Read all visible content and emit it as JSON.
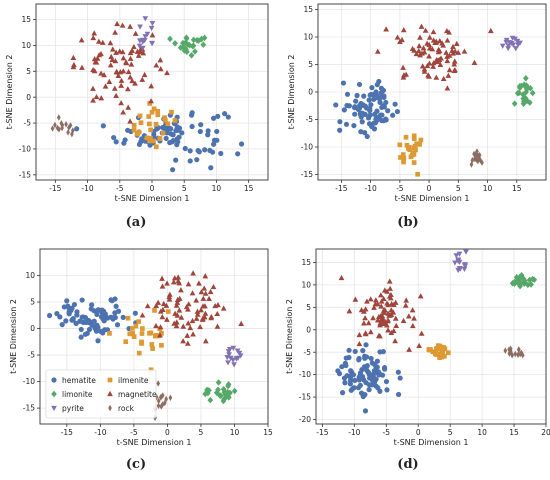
{
  "figure": {
    "captions": [
      "(a)",
      "(b)",
      "(c)",
      "(d)"
    ]
  },
  "legend": {
    "entries": [
      {
        "label": "hematite",
        "marker": "circle",
        "color": "#4c72b0"
      },
      {
        "label": "ilmenite",
        "marker": "square",
        "color": "#dd9933"
      },
      {
        "label": "limonite",
        "marker": "diamond",
        "color": "#55a868"
      },
      {
        "label": "magnetite",
        "marker": "triangle-up",
        "color": "#a0453b"
      },
      {
        "label": "pyrite",
        "marker": "triangle-down",
        "color": "#8172b3"
      },
      {
        "label": "rock",
        "marker": "thin-diamond",
        "color": "#8c6d62"
      }
    ]
  },
  "chart_data": [
    {
      "type": "scatter",
      "caption": "(a)",
      "xlabel": "t-SNE Dimension 1",
      "ylabel": "t-SNE Dimension 2",
      "xlim": [
        -18,
        18
      ],
      "ylim": [
        -16,
        18
      ],
      "xticks": [
        -15,
        -10,
        -5,
        0,
        5,
        10,
        15
      ],
      "yticks": [
        -15,
        -10,
        -5,
        0,
        5,
        10,
        15
      ],
      "grid": true,
      "legend": false,
      "clusters": [
        {
          "class": "hematite",
          "cx": 3,
          "cy": -7,
          "sx": 6,
          "sy": 3.5,
          "n": 90
        },
        {
          "class": "ilmenite",
          "cx": 0,
          "cy": -5,
          "sx": 2.5,
          "sy": 3.5,
          "n": 28
        },
        {
          "class": "magnetite",
          "cx": -5,
          "cy": 6,
          "sx": 5,
          "sy": 5,
          "n": 80
        },
        {
          "class": "limonite",
          "cx": 6,
          "cy": 10,
          "sx": 2.5,
          "sy": 1.2,
          "n": 24
        },
        {
          "class": "pyrite",
          "cx": -1,
          "cy": 12,
          "sx": 1.2,
          "sy": 2.2,
          "n": 14
        },
        {
          "class": "rock",
          "cx": -14,
          "cy": -6,
          "sx": 1.2,
          "sy": 1.0,
          "n": 14
        }
      ]
    },
    {
      "type": "scatter",
      "caption": "(b)",
      "xlabel": "t-SNE Dimension 1",
      "ylabel": "t-SNE Dimension 2",
      "xlim": [
        -19,
        20
      ],
      "ylim": [
        -16,
        16
      ],
      "xticks": [
        -15,
        -10,
        -5,
        0,
        5,
        10,
        15
      ],
      "yticks": [
        -15,
        -10,
        -5,
        0,
        5,
        10,
        15
      ],
      "grid": true,
      "legend": false,
      "clusters": [
        {
          "class": "hematite",
          "cx": -10,
          "cy": -3,
          "sx": 3.5,
          "sy": 3.0,
          "n": 85
        },
        {
          "class": "ilmenite",
          "cx": -3,
          "cy": -10,
          "sx": 1.2,
          "sy": 2.0,
          "n": 28
        },
        {
          "class": "magnetite",
          "cx": 1,
          "cy": 7,
          "sx": 4.5,
          "sy": 3.5,
          "n": 80
        },
        {
          "class": "limonite",
          "cx": 16,
          "cy": 0,
          "sx": 1.0,
          "sy": 2.0,
          "n": 24
        },
        {
          "class": "pyrite",
          "cx": 14,
          "cy": 9,
          "sx": 1.5,
          "sy": 1.0,
          "n": 14
        },
        {
          "class": "rock",
          "cx": 8,
          "cy": -12,
          "sx": 1.2,
          "sy": 1.5,
          "n": 14
        }
      ]
    },
    {
      "type": "scatter",
      "caption": "(c)",
      "xlabel": "t-SNE Dimension 1",
      "ylabel": "t-SNE Dimension 2",
      "xlim": [
        -19,
        15
      ],
      "ylim": [
        -18,
        15
      ],
      "xticks": [
        -15,
        -10,
        -5,
        0,
        5,
        10,
        15
      ],
      "yticks": [
        -15,
        -10,
        -5,
        0,
        5,
        10
      ],
      "grid": true,
      "legend": true,
      "legend_loc": "lower-left",
      "clusters": [
        {
          "class": "hematite",
          "cx": -11,
          "cy": 2,
          "sx": 4.0,
          "sy": 2.5,
          "n": 85
        },
        {
          "class": "ilmenite",
          "cx": -3,
          "cy": -1,
          "sx": 3.0,
          "sy": 3.0,
          "n": 28
        },
        {
          "class": "magnetite",
          "cx": 3,
          "cy": 4,
          "sx": 4.5,
          "sy": 4.5,
          "n": 80
        },
        {
          "class": "limonite",
          "cx": 8,
          "cy": -12,
          "sx": 1.5,
          "sy": 1.5,
          "n": 24
        },
        {
          "class": "pyrite",
          "cx": 10,
          "cy": -5,
          "sx": 1.0,
          "sy": 1.3,
          "n": 14
        },
        {
          "class": "rock",
          "cx": -1,
          "cy": -14,
          "sx": 1.0,
          "sy": 1.5,
          "n": 14
        }
      ]
    },
    {
      "type": "scatter",
      "caption": "(d)",
      "xlabel": "t-SNE Dimension 1",
      "ylabel": "t-SNE Dimension 2",
      "xlim": [
        -16,
        20
      ],
      "ylim": [
        -21,
        18
      ],
      "xticks": [
        -15,
        -10,
        -5,
        0,
        5,
        10,
        15,
        20
      ],
      "yticks": [
        -20,
        -15,
        -10,
        -5,
        0,
        5,
        10,
        15
      ],
      "grid": true,
      "legend": false,
      "clusters": [
        {
          "class": "hematite",
          "cx": -8,
          "cy": -10,
          "sx": 3.0,
          "sy": 4.5,
          "n": 85
        },
        {
          "class": "ilmenite",
          "cx": 3,
          "cy": -5,
          "sx": 1.5,
          "sy": 1.2,
          "n": 28
        },
        {
          "class": "magnetite",
          "cx": -5,
          "cy": 4,
          "sx": 3.5,
          "sy": 5.0,
          "n": 80
        },
        {
          "class": "limonite",
          "cx": 16,
          "cy": 11,
          "sx": 1.5,
          "sy": 1.0,
          "n": 24
        },
        {
          "class": "pyrite",
          "cx": 7,
          "cy": 15,
          "sx": 1.2,
          "sy": 1.5,
          "n": 14
        },
        {
          "class": "rock",
          "cx": 15,
          "cy": -5,
          "sx": 1.5,
          "sy": 1.0,
          "n": 14
        }
      ]
    }
  ]
}
